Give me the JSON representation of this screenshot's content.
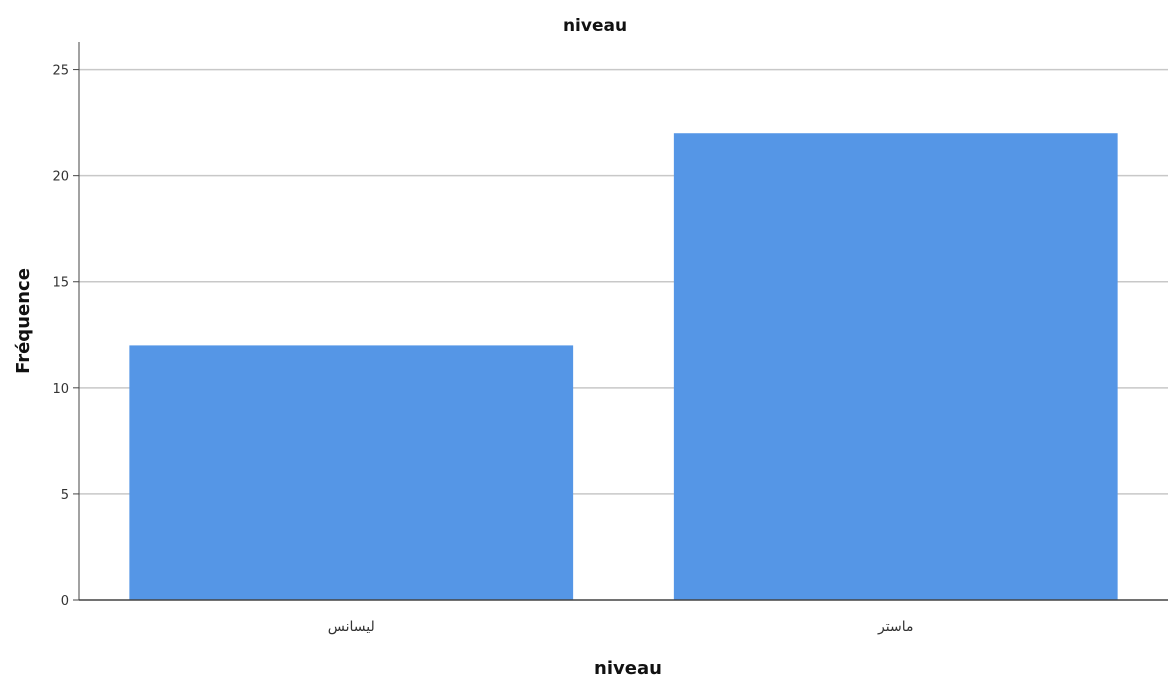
{
  "chart_data": {
    "type": "bar",
    "title": "niveau",
    "xlabel": "niveau",
    "ylabel": "Fréquence",
    "categories": [
      "لیسانس",
      "ماستر"
    ],
    "values": [
      12,
      22
    ],
    "ylim": [
      0,
      26.3
    ],
    "yticks": [
      0,
      5,
      10,
      15,
      20,
      25
    ],
    "grid": true,
    "legend": "none",
    "colors": {
      "bar": "#5596e6",
      "grid": "#c8c8c8",
      "axis": "#444444"
    }
  }
}
